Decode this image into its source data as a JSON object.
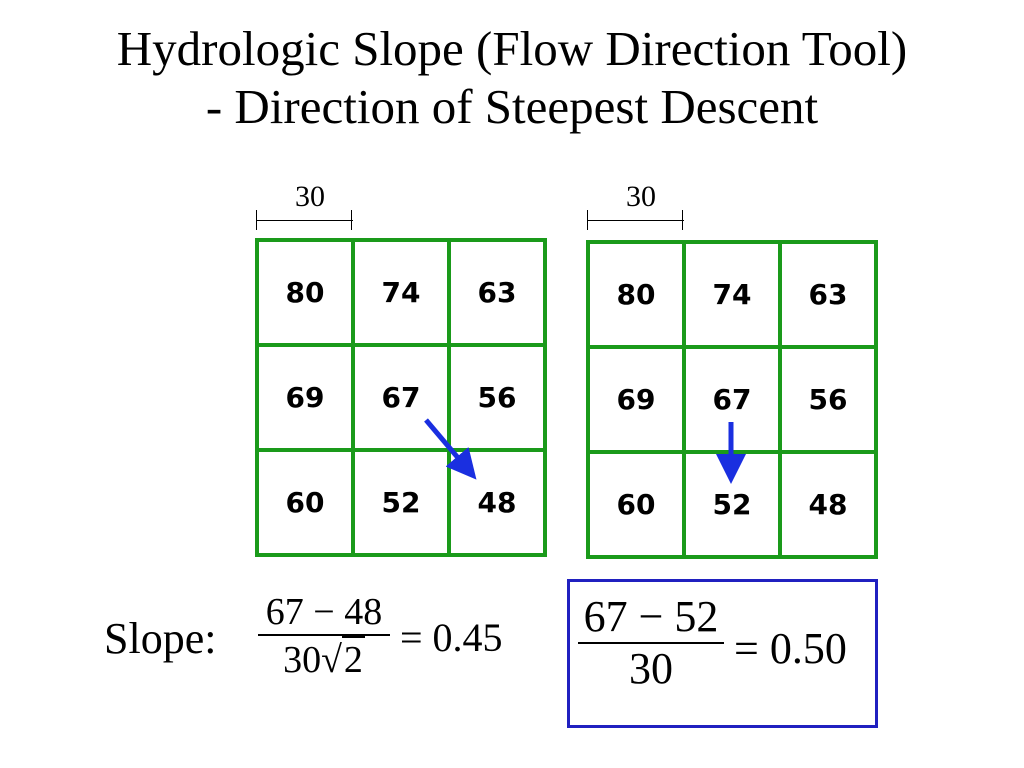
{
  "title": {
    "line1": "Hydrologic Slope (Flow Direction Tool)",
    "line2": "- Direction of Steepest Descent"
  },
  "colors": {
    "grid_border": "#1a9a1a",
    "arrow": "#1a2fe0",
    "highlight_box": "#2020c0"
  },
  "grids": [
    {
      "cell_size_label": "30",
      "cells": [
        "80",
        "74",
        "63",
        "69",
        "67",
        "56",
        "60",
        "52",
        "48"
      ],
      "flow_to": "48"
    },
    {
      "cell_size_label": "30",
      "cells": [
        "80",
        "74",
        "63",
        "69",
        "67",
        "56",
        "60",
        "52",
        "48"
      ],
      "flow_to": "52"
    }
  ],
  "slope": {
    "label": "Slope:",
    "diagonal": {
      "numerator": "67 − 48",
      "denominator_coef": "30",
      "denominator_root": "2",
      "result": "= 0.45"
    },
    "cardinal": {
      "numerator": "67 − 52",
      "denominator": "30",
      "result": "= 0.50"
    }
  }
}
